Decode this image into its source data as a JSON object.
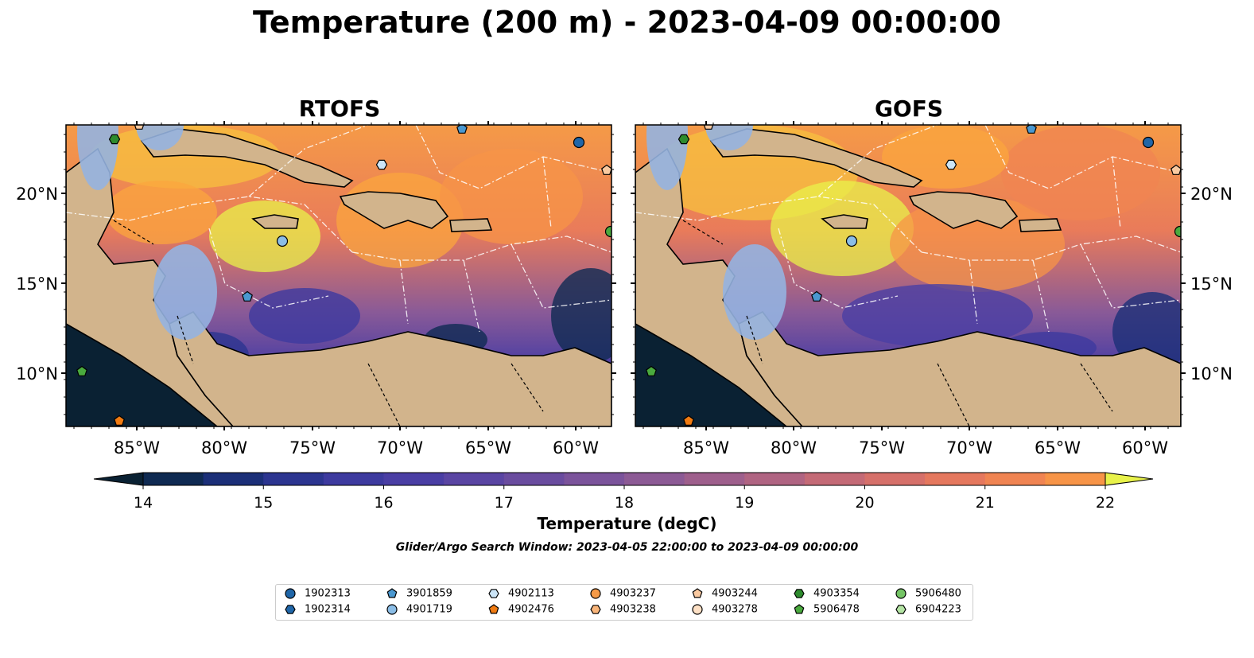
{
  "title": "Temperature (200 m) - 2023-04-09 00:00:00",
  "panels": [
    {
      "title": "RTOFS"
    },
    {
      "title": "GOFS"
    }
  ],
  "axes": {
    "lon_ticks": [
      "85°W",
      "80°W",
      "75°W",
      "70°W",
      "65°W",
      "60°W"
    ],
    "lat_ticks": [
      "20°N",
      "15°N",
      "10°N"
    ]
  },
  "colorbar": {
    "label": "Temperature (degC)",
    "ticks": [
      "14",
      "15",
      "16",
      "17",
      "18",
      "19",
      "20",
      "21",
      "22"
    ],
    "min": 14,
    "max": 22,
    "step": 0.5,
    "extend": "both",
    "colors": [
      "#0a2133",
      "#0f2a52",
      "#1b2f78",
      "#2c3590",
      "#3d3a9f",
      "#4a3ea4",
      "#5a45a3",
      "#6a4c9f",
      "#7b539b",
      "#8c5a95",
      "#9e5f8c",
      "#b06482",
      "#c46a76",
      "#d6706a",
      "#e5785e",
      "#f08452",
      "#f79447",
      "#fba63e",
      "#f7c03f",
      "#e8f24a"
    ]
  },
  "search_window": "Glider/Argo Search Window: 2023-04-05 22:00:00 to 2023-04-09 00:00:00",
  "legend": [
    {
      "id": "1902313",
      "shape": "circle",
      "color": "#2066a8"
    },
    {
      "id": "1902314",
      "shape": "hexagon",
      "color": "#2066a8"
    },
    {
      "id": "3901859",
      "shape": "pentagon",
      "color": "#4a98d0"
    },
    {
      "id": "4901719",
      "shape": "circle",
      "color": "#8bbde6"
    },
    {
      "id": "4902113",
      "shape": "hexagon",
      "color": "#cce5f7"
    },
    {
      "id": "4902476",
      "shape": "pentagon",
      "color": "#f07b12"
    },
    {
      "id": "4903237",
      "shape": "circle",
      "color": "#f59a47"
    },
    {
      "id": "4903238",
      "shape": "hexagon",
      "color": "#f9b57a"
    },
    {
      "id": "4903244",
      "shape": "pentagon",
      "color": "#f9c9a0"
    },
    {
      "id": "4903278",
      "shape": "circle",
      "color": "#fde0c5"
    },
    {
      "id": "4903354",
      "shape": "hexagon",
      "color": "#2e8b2e"
    },
    {
      "id": "5906478",
      "shape": "pentagon",
      "color": "#4aaa3e"
    },
    {
      "id": "5906480",
      "shape": "circle",
      "color": "#74c465"
    },
    {
      "id": "6904223",
      "shape": "hexagon",
      "color": "#b4e4a4"
    }
  ]
}
